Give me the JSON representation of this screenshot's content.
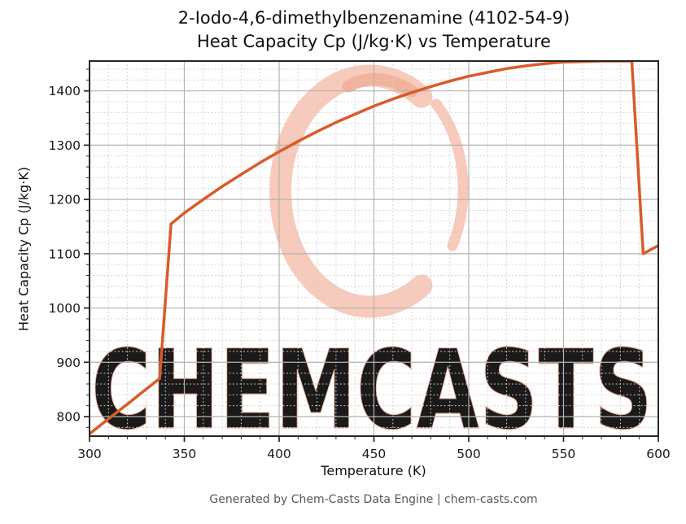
{
  "title": {
    "line1": "2-Iodo-4,6-dimethylbenzenamine (4102-54-9)",
    "line2": "Heat Capacity Cp (J/kg·K) vs Temperature"
  },
  "footer": {
    "text": "Generated by Chem-Casts Data Engine | chem-casts.com"
  },
  "watermark": {
    "text": "CHEMCASTS",
    "text_fill": "#f8d0c2",
    "text_stroke": "#f0b09a",
    "logo_color": "#f7cabb",
    "logo_accent": "#f2b29c"
  },
  "chart_data": {
    "type": "line",
    "title": "2-Iodo-4,6-dimethylbenzenamine (4102-54-9)\nHeat Capacity Cp (J/kg·K) vs Temperature",
    "title_lines": [
      "2-Iodo-4,6-dimethylbenzenamine (4102-54-9)",
      "Heat Capacity Cp (J/kg·K) vs Temperature"
    ],
    "xlabel": "Temperature (K)",
    "ylabel": "Heat Capacity Cp (J/kg·K)",
    "xlim": [
      300,
      600
    ],
    "ylim": [
      764,
      1455
    ],
    "x_ticks": [
      300,
      350,
      400,
      450,
      500,
      550,
      600
    ],
    "y_ticks": [
      800,
      900,
      1000,
      1100,
      1200,
      1300,
      1400
    ],
    "x_minor_step": 10,
    "y_minor_step": 20,
    "grid": true,
    "legend": "none",
    "line_color": "#d85b2b",
    "line_width": 3.5,
    "spine_color": "#262626",
    "grid_major_color": "#b3b3b3",
    "grid_minor_color": "#d0d0d0",
    "series": [
      {
        "name": "Heat Capacity Cp",
        "x": [
          300,
          310,
          320,
          330,
          337,
          343,
          350,
          360,
          370,
          380,
          390,
          400,
          410,
          420,
          430,
          440,
          450,
          460,
          470,
          480,
          490,
          500,
          510,
          520,
          530,
          540,
          550,
          560,
          570,
          580,
          586,
          592,
          600
        ],
        "y": [
          768,
          796,
          823,
          851,
          870,
          1155,
          1175,
          1200,
          1224,
          1246,
          1268,
          1288,
          1307,
          1325,
          1342,
          1357,
          1372,
          1385,
          1397,
          1408,
          1418,
          1427,
          1434,
          1441,
          1446,
          1450,
          1453,
          1454,
          1455,
          1455,
          1455,
          1100,
          1115
        ]
      }
    ]
  }
}
